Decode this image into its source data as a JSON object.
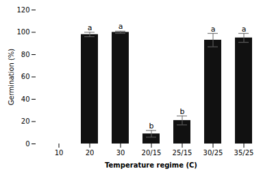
{
  "chart_data": {
    "type": "bar",
    "categories": [
      "10",
      "20",
      "30",
      "20/15",
      "25/15",
      "30/25",
      "35/25"
    ],
    "values": [
      0,
      98,
      100,
      9,
      21,
      93,
      95
    ],
    "errors": [
      0,
      2,
      1,
      3,
      4,
      6,
      4
    ],
    "letters": [
      null,
      "a",
      "a",
      "b",
      "b",
      "a",
      "a"
    ],
    "color": "#111111",
    "xlabel": "Temperature regime (C)",
    "ylabel": "Germination (%)",
    "ylim": [
      0,
      120
    ],
    "yticks": [
      0,
      20,
      40,
      60,
      80,
      100,
      120
    ],
    "grid": false
  }
}
